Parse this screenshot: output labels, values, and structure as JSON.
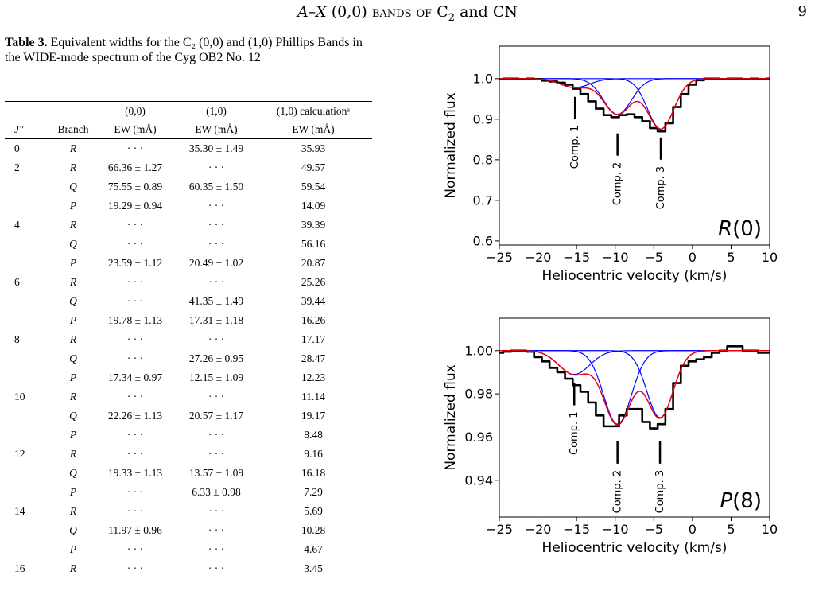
{
  "header": {
    "title_italic": "A–X",
    "title_mid": " (0,0) ",
    "title_smallcaps": "bands of",
    "title_c2": " C",
    "title_sub2": "2",
    "title_rest": " and CN",
    "page_number": "9"
  },
  "caption": {
    "label": "Table 3.",
    "text": " Equivalent widths for the C₂ (0,0) and (1,0) Phillips Bands in the WIDE-mode spectrum of the Cyg OB2 No. 12"
  },
  "table": {
    "group_headers": [
      "",
      "",
      "(0,0)",
      "(1,0)",
      "(1,0) calculationᵃ"
    ],
    "headers": [
      "J″",
      "Branch",
      "EW (mÅ)",
      "EW (mÅ)",
      "EW (mÅ)"
    ],
    "rows": [
      [
        "0",
        "R",
        "· · ·",
        "35.30 ± 1.49",
        "35.93"
      ],
      [
        "2",
        "R",
        "66.36 ± 1.27",
        "· · ·",
        "49.57"
      ],
      [
        "",
        "Q",
        "75.55 ± 0.89",
        "60.35 ± 1.50",
        "59.54"
      ],
      [
        "",
        "P",
        "19.29 ± 0.94",
        "· · ·",
        "14.09"
      ],
      [
        "4",
        "R",
        "· · ·",
        "· · ·",
        "39.39"
      ],
      [
        "",
        "Q",
        "· · ·",
        "· · ·",
        "56.16"
      ],
      [
        "",
        "P",
        "23.59 ± 1.12",
        "20.49 ± 1.02",
        "20.87"
      ],
      [
        "6",
        "R",
        "· · ·",
        "· · ·",
        "25.26"
      ],
      [
        "",
        "Q",
        "· · ·",
        "41.35 ± 1.49",
        "39.44"
      ],
      [
        "",
        "P",
        "19.78 ± 1.13",
        "17.31 ± 1.18",
        "16.26"
      ],
      [
        "8",
        "R",
        "· · ·",
        "· · ·",
        "17.17"
      ],
      [
        "",
        "Q",
        "· · ·",
        "27.26 ± 0.95",
        "28.47"
      ],
      [
        "",
        "P",
        "17.34 ± 0.97",
        "12.15 ± 1.09",
        "12.23"
      ],
      [
        "10",
        "R",
        "· · ·",
        "· · ·",
        "11.14"
      ],
      [
        "",
        "Q",
        "22.26 ± 1.13",
        "20.57 ± 1.17",
        "19.17"
      ],
      [
        "",
        "P",
        "· · ·",
        "· · ·",
        "8.48"
      ],
      [
        "12",
        "R",
        "· · ·",
        "· · ·",
        "9.16"
      ],
      [
        "",
        "Q",
        "19.33 ± 1.13",
        "13.57 ± 1.09",
        "16.18"
      ],
      [
        "",
        "P",
        "· · ·",
        "6.33 ± 0.98",
        "7.29"
      ],
      [
        "14",
        "R",
        "· · ·",
        "· · ·",
        "5.69"
      ],
      [
        "",
        "Q",
        "11.97 ± 0.96",
        "· · ·",
        "10.28"
      ],
      [
        "",
        "P",
        "· · ·",
        "· · ·",
        "4.67"
      ],
      [
        "16",
        "R",
        "· · ·",
        "· · ·",
        "3.45"
      ]
    ]
  },
  "chart_data": [
    {
      "type": "line",
      "panel_label": "R(0)",
      "xlabel": "Heliocentric velocity (km/s)",
      "ylabel": "Normalized flux",
      "xlim": [
        -25,
        10
      ],
      "ylim": [
        0.59,
        1.08
      ],
      "xticks": [
        -25,
        -20,
        -15,
        -10,
        -5,
        0,
        5,
        10
      ],
      "yticks": [
        0.6,
        0.7,
        0.8,
        0.9,
        1.0
      ],
      "ytick_labels": [
        "0.6",
        "0.7",
        "0.8",
        "0.9",
        "1.0"
      ],
      "components": [
        {
          "label": "Comp. 1",
          "v": -15.2,
          "depth": 0.022,
          "sigma": 1.9
        },
        {
          "label": "Comp. 2",
          "v": -9.7,
          "depth": 0.088,
          "sigma": 1.8
        },
        {
          "label": "Comp. 3",
          "v": -4.1,
          "depth": 0.124,
          "sigma": 1.7
        }
      ],
      "observed": {
        "x": [
          -25,
          -24,
          -23,
          -22,
          -21,
          -20,
          -19,
          -18,
          -17,
          -16,
          -15,
          -14,
          -13,
          -12,
          -11,
          -10,
          -9,
          -8,
          -7,
          -6,
          -5,
          -4,
          -3,
          -2,
          -1,
          0,
          1,
          2,
          3,
          4,
          5,
          6,
          7,
          8,
          9,
          10
        ],
        "y": [
          0.999,
          1.0,
          1.0,
          0.999,
          1.0,
          0.999,
          0.995,
          0.993,
          0.99,
          0.985,
          0.975,
          0.962,
          0.944,
          0.926,
          0.91,
          0.905,
          0.91,
          0.912,
          0.905,
          0.895,
          0.878,
          0.87,
          0.89,
          0.93,
          0.962,
          0.985,
          0.996,
          1.0,
          1.0,
          0.999,
          1.0,
          1.0,
          0.999,
          1.0,
          0.999,
          1.0
        ]
      },
      "markers": [
        {
          "label": "Comp. 1",
          "v": -15.2,
          "y": 0.955
        },
        {
          "label": "Comp. 2",
          "v": -9.7,
          "y": 0.865
        },
        {
          "label": "Comp. 3",
          "v": -4.1,
          "y": 0.855
        }
      ]
    },
    {
      "type": "line",
      "panel_label": "P(8)",
      "xlabel": "Heliocentric velocity (km/s)",
      "ylabel": "Normalized flux",
      "xlim": [
        -25,
        10
      ],
      "ylim": [
        0.923,
        1.015
      ],
      "xticks": [
        -25,
        -20,
        -15,
        -10,
        -5,
        0,
        5,
        10
      ],
      "yticks": [
        0.94,
        0.96,
        0.98,
        1.0
      ],
      "ytick_labels": [
        "0.94",
        "0.96",
        "0.98",
        "1.00"
      ],
      "components": [
        {
          "label": "Comp. 1",
          "v": -15.3,
          "depth": 0.011,
          "sigma": 2.0
        },
        {
          "label": "Comp. 2",
          "v": -9.7,
          "depth": 0.034,
          "sigma": 1.8
        },
        {
          "label": "Comp. 3",
          "v": -4.2,
          "depth": 0.031,
          "sigma": 1.7
        }
      ],
      "observed": {
        "x": [
          -25,
          -24,
          -23,
          -22,
          -21,
          -20,
          -19,
          -18,
          -17,
          -16,
          -15,
          -14,
          -13,
          -12,
          -11,
          -10,
          -9,
          -8,
          -7,
          -6,
          -5,
          -4,
          -3,
          -2,
          -1,
          0,
          1,
          2,
          3,
          4,
          5,
          6,
          7,
          8,
          9,
          10
        ],
        "y": [
          0.999,
          0.9995,
          1.0,
          1.0,
          0.9995,
          0.997,
          0.995,
          0.992,
          0.99,
          0.987,
          0.984,
          0.981,
          0.976,
          0.97,
          0.965,
          0.965,
          0.97,
          0.973,
          0.973,
          0.967,
          0.964,
          0.966,
          0.973,
          0.985,
          0.993,
          0.995,
          0.996,
          0.997,
          0.999,
          1.0,
          1.002,
          1.002,
          1.0,
          1.0,
          0.999,
          0.999
        ]
      },
      "markers": [
        {
          "label": "Comp. 1",
          "v": -15.3,
          "y": 0.985
        },
        {
          "label": "Comp. 2",
          "v": -9.7,
          "y": 0.958
        },
        {
          "label": "Comp. 3",
          "v": -4.2,
          "y": 0.958
        }
      ]
    }
  ]
}
